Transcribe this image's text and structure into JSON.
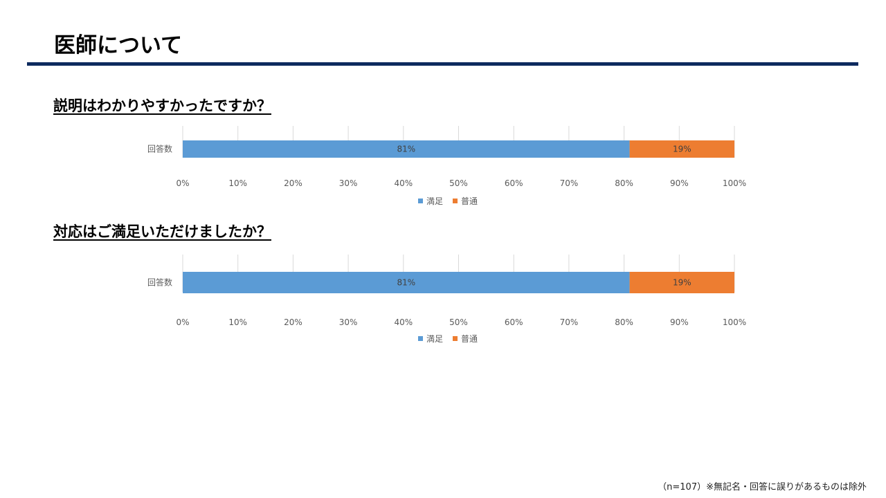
{
  "page": {
    "title": "医師について",
    "footnote": "（n=107）※無記名・回答に誤りがあるものは除外"
  },
  "colors": {
    "satisfied": "#5b9bd5",
    "normal": "#ed7d31",
    "rule": "#0d2a5e",
    "grid": "#d9d9d9",
    "axis_text": "#595959"
  },
  "questions": [
    {
      "label": "説明はわかりやすかったですか？"
    },
    {
      "label": "対応はご満足いただけましたか？"
    }
  ],
  "chart_data": [
    {
      "type": "bar",
      "orientation": "horizontal",
      "stacked": "percent",
      "categories": [
        "回答数"
      ],
      "series": [
        {
          "name": "満足",
          "values": [
            81
          ],
          "data_labels": [
            "81%"
          ],
          "color": "#5b9bd5"
        },
        {
          "name": "普通",
          "values": [
            19
          ],
          "data_labels": [
            "19%"
          ],
          "color": "#ed7d31"
        }
      ],
      "xlim": [
        0,
        100
      ],
      "x_ticks": [
        "0%",
        "10%",
        "20%",
        "30%",
        "40%",
        "50%",
        "60%",
        "70%",
        "80%",
        "90%",
        "100%"
      ],
      "grid": true,
      "legend": "bottom"
    },
    {
      "type": "bar",
      "orientation": "horizontal",
      "stacked": "percent",
      "categories": [
        "回答数"
      ],
      "series": [
        {
          "name": "満足",
          "values": [
            81
          ],
          "data_labels": [
            "81%"
          ],
          "color": "#5b9bd5"
        },
        {
          "name": "普通",
          "values": [
            19
          ],
          "data_labels": [
            "19%"
          ],
          "color": "#ed7d31"
        }
      ],
      "xlim": [
        0,
        100
      ],
      "x_ticks": [
        "0%",
        "10%",
        "20%",
        "30%",
        "40%",
        "50%",
        "60%",
        "70%",
        "80%",
        "90%",
        "100%"
      ],
      "grid": true,
      "legend": "bottom"
    }
  ]
}
